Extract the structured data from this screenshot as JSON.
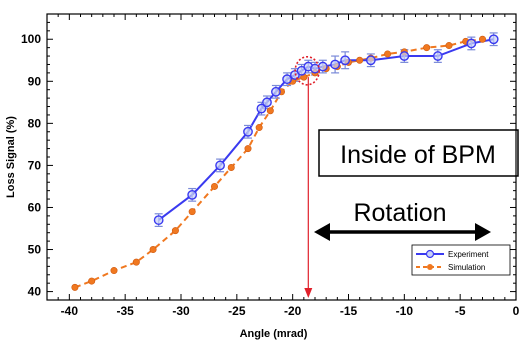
{
  "chart_data": {
    "type": "line",
    "xlabel": "Angle (mrad)",
    "ylabel": "Loss Signal (%)",
    "xlim": [
      -42,
      0
    ],
    "ylim": [
      38,
      106
    ],
    "x_ticks": [
      -40,
      -35,
      -30,
      -25,
      -20,
      -15,
      -10,
      -5,
      0
    ],
    "x_tick_labels": [
      "-40",
      "-35",
      "-30",
      "-25",
      "-20",
      "-15",
      "-10",
      "-5",
      "0"
    ],
    "y_ticks": [
      40,
      50,
      60,
      70,
      80,
      90,
      100
    ],
    "y_tick_labels": [
      "40",
      "50",
      "60",
      "70",
      "80",
      "90",
      "100"
    ],
    "grid": false,
    "legend_position": "bottom-right",
    "series": [
      {
        "name": "Experiment",
        "color": "#3a3af0",
        "marker": "open-circle",
        "line": "solid",
        "x": [
          -32,
          -29,
          -26.5,
          -24,
          -22.8,
          -22.3,
          -21.5,
          -20.5,
          -19.8,
          -19.2,
          -18.6,
          -18,
          -17.3,
          -16.2,
          -15.3,
          -13,
          -10,
          -7,
          -4,
          -2
        ],
        "y": [
          57,
          63,
          70,
          78,
          83.5,
          85,
          87.5,
          90.5,
          91.5,
          92.5,
          93.5,
          93,
          93.5,
          94,
          95,
          95,
          96,
          96,
          99,
          100
        ],
        "error": [
          1.5,
          1.5,
          1.5,
          1.5,
          1.5,
          1.5,
          1.5,
          1.5,
          1.5,
          1.5,
          1.5,
          1.5,
          1.5,
          2,
          2,
          1.5,
          1.5,
          1.5,
          1.5,
          1.5
        ]
      },
      {
        "name": "Simulation",
        "color": "#f07820",
        "marker": "filled-circle",
        "line": "dashed",
        "x": [
          -39.5,
          -38,
          -36,
          -34,
          -32.5,
          -30.5,
          -29,
          -27,
          -25.5,
          -24,
          -23,
          -22,
          -21,
          -20,
          -19,
          -18,
          -17,
          -16,
          -15,
          -14,
          -13,
          -11.5,
          -10,
          -8,
          -6,
          -4.5,
          -3
        ],
        "y": [
          41,
          42.5,
          45,
          47,
          50,
          54.5,
          59,
          65,
          69.5,
          74,
          79,
          83,
          87.5,
          90,
          91,
          92,
          93,
          93.5,
          94.5,
          95,
          95.5,
          96.5,
          97,
          98,
          98.5,
          99.5,
          100
        ]
      }
    ],
    "annotations": {
      "box_text": "Inside of BPM",
      "rotation_text": "Rotation",
      "marker_x": -18.6,
      "marker_line_color": "#e0202a",
      "highlight_x": -18.7,
      "highlight_y": 92.5
    }
  }
}
